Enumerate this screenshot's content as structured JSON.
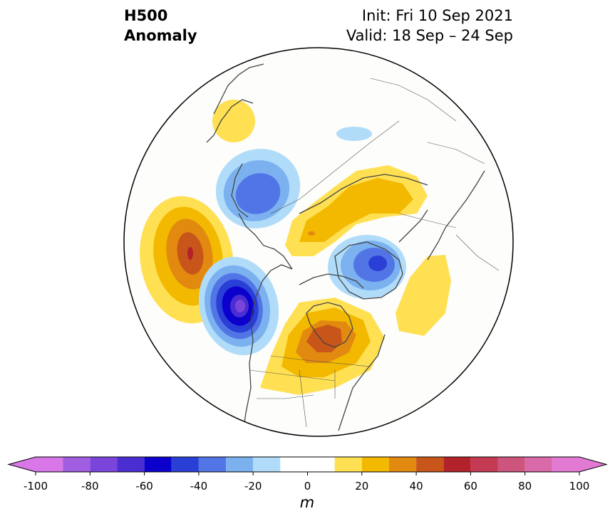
{
  "title": {
    "variable": "H500",
    "kind": "Anomaly",
    "init": "Init: Fri 10 Sep 2021",
    "valid": "Valid: 18 Sep – 24 Sep"
  },
  "colorbar": {
    "unit": "m",
    "ticks": [
      "-100",
      "-80",
      "-60",
      "-40",
      "-20",
      "0",
      "20",
      "40",
      "60",
      "80",
      "100"
    ],
    "levels": [
      -100,
      -90,
      -80,
      -70,
      -60,
      -50,
      -40,
      -30,
      -20,
      -10,
      10,
      20,
      30,
      40,
      50,
      60,
      70,
      80,
      90,
      100
    ],
    "colors": [
      "#d977e8",
      "#a25ee0",
      "#7b45dc",
      "#4a2ed2",
      "#0b00cc",
      "#2a3fd6",
      "#5275e6",
      "#7cb1f0",
      "#b0dcfa",
      "#ffffff",
      "#ffe053",
      "#f2b900",
      "#e28a10",
      "#c85519",
      "#b3222a",
      "#c43a52",
      "#cc547d",
      "#d96aa9",
      "#e27ad4"
    ],
    "extend": "both"
  },
  "map": {
    "projection": "north polar stereographic",
    "features": [
      "coastlines",
      "country borders",
      "US state borders",
      "Canadian province borders"
    ],
    "anomaly_centers": [
      {
        "region": "North Pacific (Aleutians)",
        "sign": "positive",
        "peak_m": 55
      },
      {
        "region": "Gulf of Alaska / British Columbia coast",
        "sign": "negative",
        "peak_m": -75
      },
      {
        "region": "Hudson Bay / central Canada",
        "sign": "positive",
        "peak_m": 45
      },
      {
        "region": "Greenland Sea / Iceland",
        "sign": "negative",
        "peak_m": -50
      },
      {
        "region": "Barents–Kara Sea / northern Russia",
        "sign": "positive",
        "peak_m": 35
      },
      {
        "region": "Kamchatka / Bering Sea",
        "sign": "negative",
        "peak_m": -45
      },
      {
        "region": "North Atlantic / western Europe",
        "sign": "positive",
        "peak_m": 15
      },
      {
        "region": "Arctic Ocean (Laptev)",
        "sign": "negative",
        "peak_m": -15
      },
      {
        "region": "Okhotsk / NE Asia",
        "sign": "positive",
        "peak_m": 15
      }
    ]
  }
}
